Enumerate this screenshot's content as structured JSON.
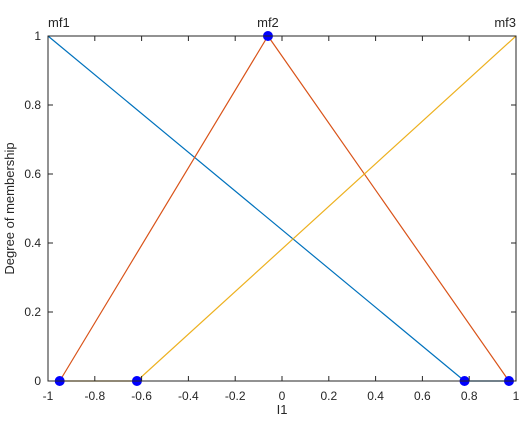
{
  "chart_data": {
    "type": "line",
    "xlabel": "I1",
    "ylabel": "Degree of membership",
    "xlim": [
      -1,
      1
    ],
    "ylim": [
      0,
      1
    ],
    "xticks": [
      -1,
      -0.8,
      -0.6,
      -0.4,
      -0.2,
      0,
      0.2,
      0.4,
      0.6,
      0.8,
      1
    ],
    "xtick_labels": [
      "-1",
      "-0.8",
      "-0.6",
      "-0.4",
      "-0.2",
      "0",
      "0.2",
      "0.4",
      "0.6",
      "0.8",
      "1"
    ],
    "yticks": [
      0,
      0.2,
      0.4,
      0.6,
      0.8,
      1
    ],
    "ytick_labels": [
      "0",
      "0.2",
      "0.4",
      "0.6",
      "0.8",
      "1"
    ],
    "grid": false,
    "series": [
      {
        "name": "mf1",
        "color": "#0072bd",
        "x": [
          -1,
          0.78,
          0.97
        ],
        "y": [
          1,
          0,
          0
        ],
        "markers_x": [
          0.78
        ],
        "markers_y": [
          0
        ]
      },
      {
        "name": "mf2",
        "color": "#d95319",
        "x": [
          -0.95,
          -0.06,
          0.97
        ],
        "y": [
          0,
          1,
          0
        ],
        "markers_x": [
          -0.95,
          -0.06,
          0.97
        ],
        "markers_y": [
          0,
          1,
          0
        ]
      },
      {
        "name": "mf3",
        "color": "#edb120",
        "x": [
          -0.95,
          -0.62,
          1
        ],
        "y": [
          0,
          0,
          1
        ],
        "markers_x": [
          -0.62
        ],
        "markers_y": [
          0
        ]
      }
    ],
    "mf_labels": [
      {
        "text": "mf1",
        "x": -1,
        "y": 1,
        "anchor": "start"
      },
      {
        "text": "mf2",
        "x": -0.06,
        "y": 1,
        "anchor": "middle"
      },
      {
        "text": "mf3",
        "x": 1,
        "y": 1,
        "anchor": "end"
      }
    ],
    "marker_color": "#0000ff"
  }
}
